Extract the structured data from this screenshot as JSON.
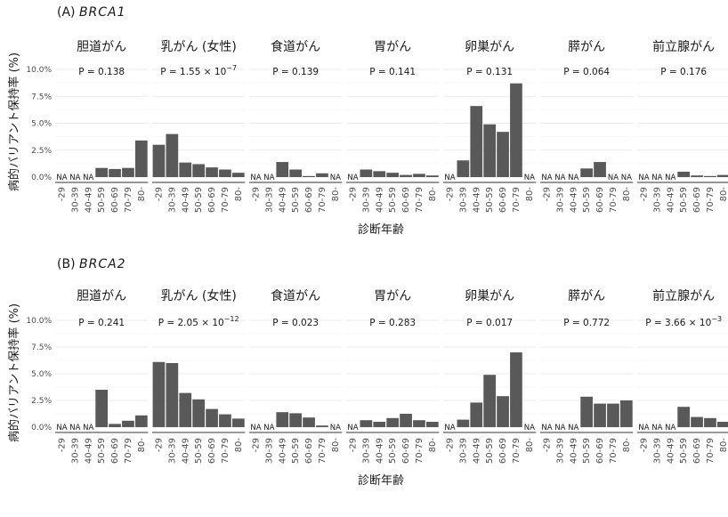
{
  "xlabel": "診断年齢",
  "ylabel": "病的バリアント保持率 (%)",
  "x_ticks": [
    "-29",
    "30-39",
    "40-49",
    "50-59",
    "60-69",
    "70-79",
    "80-"
  ],
  "y_ticks": [
    "0.0%",
    "2.5%",
    "5.0%",
    "7.5%",
    "10.0%"
  ],
  "na_label": "NA",
  "chart_data": [
    {
      "type": "bar",
      "panel": "(A)",
      "gene": "BRCA1",
      "ylim": [
        0,
        10
      ],
      "categories": [
        "-29",
        "30-39",
        "40-49",
        "50-59",
        "60-69",
        "70-79",
        "80-"
      ],
      "facets": [
        {
          "title": "胆道がん",
          "p_main": "P = 0.138",
          "values": [
            null,
            null,
            null,
            0.85,
            0.75,
            0.85,
            3.4
          ]
        },
        {
          "title": "乳がん (女性)",
          "p_main": "P = 1.55 × 10",
          "p_exp": "−7",
          "values": [
            3.0,
            4.0,
            1.35,
            1.2,
            0.9,
            0.7,
            0.4
          ]
        },
        {
          "title": "食道がん",
          "p_main": "P = 0.139",
          "values": [
            null,
            null,
            1.4,
            0.7,
            0.1,
            0.35,
            null
          ]
        },
        {
          "title": "胃がん",
          "p_main": "P = 0.141",
          "values": [
            null,
            0.7,
            0.55,
            0.4,
            0.2,
            0.3,
            0.15
          ]
        },
        {
          "title": "卵巣がん",
          "p_main": "P = 0.131",
          "values": [
            null,
            1.55,
            6.6,
            4.9,
            4.2,
            8.7,
            null
          ]
        },
        {
          "title": "膵がん",
          "p_main": "P = 0.064",
          "values": [
            null,
            null,
            null,
            0.8,
            1.4,
            null,
            null
          ]
        },
        {
          "title": "前立腺がん",
          "p_main": "P = 0.176",
          "values": [
            null,
            null,
            null,
            0.5,
            0.15,
            0.1,
            0.2
          ]
        }
      ]
    },
    {
      "type": "bar",
      "panel": "(B)",
      "gene": "BRCA2",
      "ylim": [
        0,
        10
      ],
      "categories": [
        "-29",
        "30-39",
        "40-49",
        "50-59",
        "60-69",
        "70-79",
        "80-"
      ],
      "facets": [
        {
          "title": "胆道がん",
          "p_main": "P = 0.241",
          "values": [
            null,
            null,
            null,
            3.5,
            0.3,
            0.6,
            1.1
          ]
        },
        {
          "title": "乳がん (女性)",
          "p_main": "P = 2.05 × 10",
          "p_exp": "−12",
          "values": [
            6.1,
            6.0,
            3.2,
            2.6,
            1.7,
            1.2,
            0.8
          ]
        },
        {
          "title": "食道がん",
          "p_main": "P = 0.023",
          "values": [
            null,
            null,
            1.4,
            1.3,
            0.9,
            0.15,
            null
          ]
        },
        {
          "title": "胃がん",
          "p_main": "P = 0.283",
          "values": [
            null,
            0.65,
            0.5,
            0.85,
            1.25,
            0.65,
            0.5
          ]
        },
        {
          "title": "卵巣がん",
          "p_main": "P = 0.017",
          "values": [
            null,
            0.7,
            2.3,
            4.9,
            2.9,
            7.0,
            null
          ]
        },
        {
          "title": "膵がん",
          "p_main": "P = 0.772",
          "values": [
            null,
            null,
            null,
            2.85,
            2.2,
            2.2,
            2.5
          ]
        },
        {
          "title": "前立腺がん",
          "p_main": "P = 3.66 × 10",
          "p_exp": "−3",
          "values": [
            null,
            null,
            null,
            1.9,
            0.95,
            0.85,
            0.5
          ]
        }
      ]
    }
  ]
}
